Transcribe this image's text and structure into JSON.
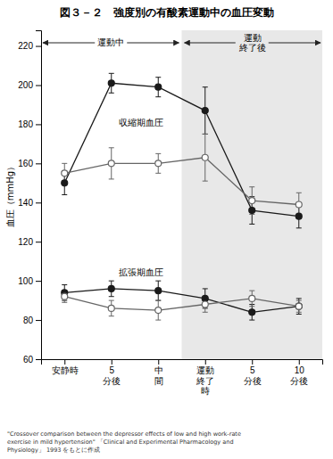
{
  "chart_data": {
    "type": "line",
    "title": "図３－２　強度別の有酸素運動中の血圧変動",
    "y_label": "血圧（mmHg）",
    "categories": [
      "安静時",
      "5\n分後",
      "中\n間",
      "運動\n終了\n時",
      "5\n分後",
      "10\n分後"
    ],
    "series": [
      {
        "color": "#1a1a1a",
        "marker": "filled-circle",
        "values": [
          150,
          201,
          199,
          187,
          136,
          133
        ],
        "errors": [
          6,
          5,
          5,
          12,
          7,
          6
        ]
      },
      {
        "color": "#666666",
        "marker": "open-circle",
        "values": [
          155,
          160,
          160,
          163,
          141,
          139
        ],
        "errors": [
          5,
          8,
          5,
          12,
          7,
          6
        ]
      },
      {
        "color": "#1a1a1a",
        "marker": "filled-circle",
        "values": [
          94,
          96,
          95,
          91,
          84,
          87
        ],
        "errors": [
          4,
          4,
          5,
          5,
          4,
          4
        ]
      },
      {
        "color": "#666666",
        "marker": "open-circle",
        "values": [
          92,
          86,
          85,
          88,
          91,
          87
        ],
        "errors": [
          3,
          4,
          5,
          4,
          4,
          3
        ]
      }
    ],
    "ylim": [
      60,
      228
    ],
    "yticks": [
      60,
      80,
      100,
      120,
      140,
      160,
      180,
      200,
      220
    ],
    "annotations": [
      "収縮期血圧",
      "拡張期血圧",
      "運動中",
      "運動\n終了後"
    ],
    "footer": "\"Crossover comparison between the depressor effects of low and high work-rate\nexercise in mild hypertension\" 「Clinical and Experimental Pharmacology and\nPhysiology」 1993 をもとに作成"
  }
}
